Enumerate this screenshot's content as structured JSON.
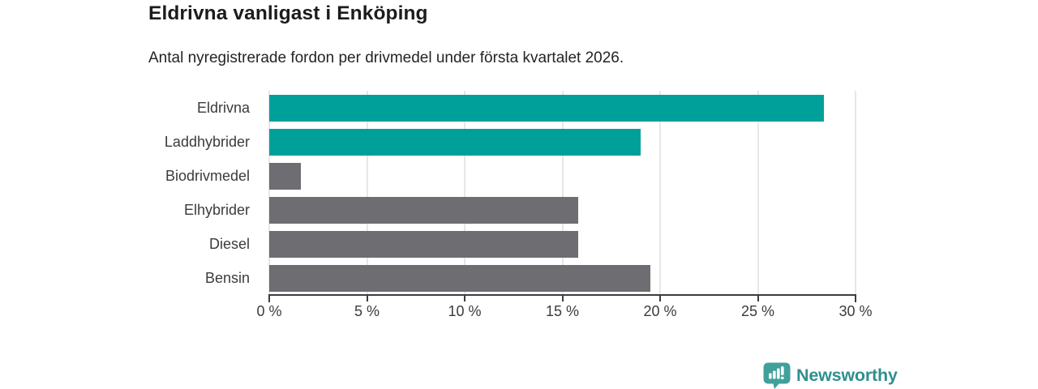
{
  "header": {
    "title": "Eldrivna vanligast i Enköping",
    "subtitle": "Antal nyregistrerade fordon per drivmedel under första kvartalet 2026."
  },
  "chart_data": {
    "type": "bar",
    "orientation": "horizontal",
    "title": "Eldrivna vanligast i Enköping",
    "subtitle": "Antal nyregistrerade fordon per drivmedel under första kvartalet 2026.",
    "categories": [
      "Eldrivna",
      "Laddhybrider",
      "Biodrivmedel",
      "Elhybrider",
      "Diesel",
      "Bensin"
    ],
    "values": [
      28.4,
      19.0,
      1.6,
      15.8,
      15.8,
      19.5
    ],
    "bar_colors": [
      "#00a09a",
      "#00a09a",
      "#6d6d72",
      "#6d6d72",
      "#6d6d72",
      "#6d6d72"
    ],
    "highlight_color": "#00a09a",
    "base_color": "#6d6d72",
    "xlabel": "",
    "ylabel": "",
    "xlim": [
      0,
      30
    ],
    "xticks": [
      0,
      5,
      10,
      15,
      20,
      25,
      30
    ],
    "xtick_labels": [
      "0 %",
      "5 %",
      "10 %",
      "15 %",
      "20 %",
      "25 %",
      "30 %"
    ],
    "grid": true,
    "gridline_color": "#e7e7e7",
    "axis_color": "#3d3d3d",
    "legend": false
  },
  "footer": {
    "brand": "Newsworthy",
    "brand_color": "#2f8f8e",
    "logo_color": "#41a09b",
    "logo_icon": "bar-chart-speech-bubble-icon"
  }
}
